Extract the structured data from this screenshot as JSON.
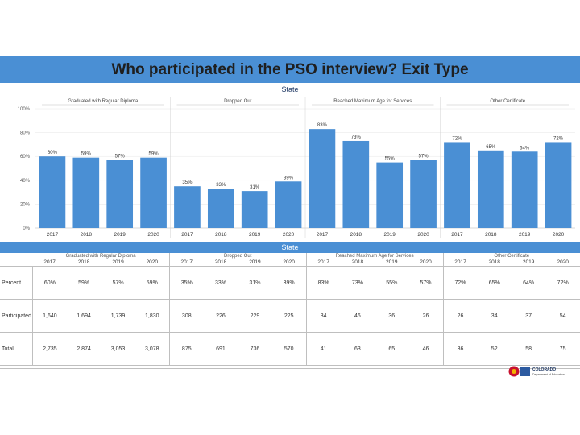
{
  "title": "Who participated in the PSO interview? Exit Type",
  "chart_label": "State",
  "table_label": "State",
  "groups": [
    "Graduated with Regular Diploma",
    "Dropped Out",
    "Reached Maximum Age for Services",
    "Other Certificate"
  ],
  "years": [
    "2017",
    "2018",
    "2019",
    "2020"
  ],
  "chart_data": {
    "type": "bar",
    "title": "",
    "ylim": [
      0,
      100
    ],
    "yticks": [
      "0%",
      "20%",
      "40%",
      "60%",
      "80%",
      "100%"
    ],
    "panels": [
      {
        "group": "Graduated with Regular Diploma",
        "categories": [
          "2017",
          "2018",
          "2019",
          "2020"
        ],
        "values": [
          60,
          59,
          57,
          59
        ],
        "labels": [
          "60%",
          "59%",
          "57%",
          "59%"
        ]
      },
      {
        "group": "Dropped Out",
        "categories": [
          "2017",
          "2018",
          "2019",
          "2020"
        ],
        "values": [
          35,
          33,
          31,
          39
        ],
        "labels": [
          "35%",
          "33%",
          "31%",
          "39%"
        ]
      },
      {
        "group": "Reached Maximum Age for Services",
        "categories": [
          "2017",
          "2018",
          "2019",
          "2020"
        ],
        "values": [
          83,
          73,
          55,
          57
        ],
        "labels": [
          "83%",
          "73%",
          "55%",
          "57%"
        ]
      },
      {
        "group": "Other Certificate",
        "categories": [
          "2017",
          "2018",
          "2019",
          "2020"
        ],
        "values": [
          72,
          65,
          64,
          72
        ],
        "labels": [
          "72%",
          "65%",
          "64%",
          "72%"
        ]
      }
    ],
    "bar_color": "#4a8fd4"
  },
  "table": {
    "rows": [
      {
        "label": "Percent",
        "values": [
          "60%",
          "59%",
          "57%",
          "59%",
          "35%",
          "33%",
          "31%",
          "39%",
          "83%",
          "73%",
          "55%",
          "57%",
          "72%",
          "65%",
          "64%",
          "72%"
        ]
      },
      {
        "label": "Participated",
        "values": [
          "1,640",
          "1,694",
          "1,739",
          "1,830",
          "308",
          "226",
          "229",
          "225",
          "34",
          "46",
          "36",
          "26",
          "26",
          "34",
          "37",
          "54"
        ]
      },
      {
        "label": "Total",
        "values": [
          "2,735",
          "2,874",
          "3,053",
          "3,078",
          "875",
          "691",
          "736",
          "570",
          "41",
          "63",
          "65",
          "46",
          "36",
          "52",
          "58",
          "75"
        ]
      }
    ]
  },
  "logo": {
    "line1": "COLORADO",
    "line2": "Department of Education"
  }
}
